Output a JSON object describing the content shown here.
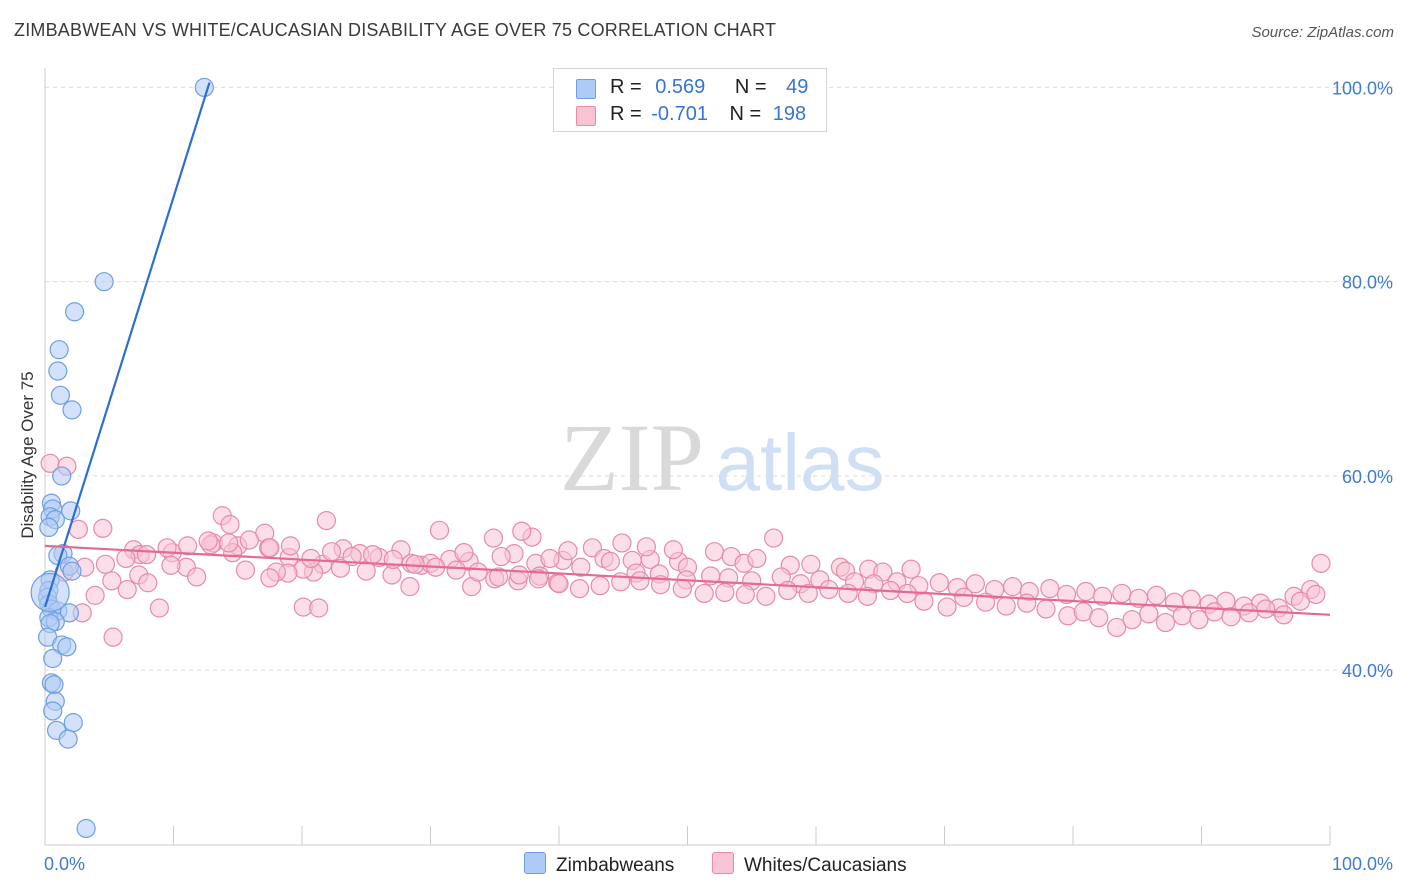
{
  "header": {
    "title": "ZIMBABWEAN VS WHITE/CAUCASIAN DISABILITY AGE OVER 75 CORRELATION CHART",
    "source": "Source: ZipAtlas.com"
  },
  "watermark": {
    "zip": "ZIP",
    "atlas": "atlas"
  },
  "legend_top": {
    "rows": [
      {
        "r_label": "R =",
        "r_value": "0.569",
        "n_label": "N =",
        "n_value": "49",
        "color": "#aecbf5",
        "border": "#6f9fe0"
      },
      {
        "r_label": "R =",
        "r_value": "-0.701",
        "n_label": "N =",
        "n_value": "198",
        "color": "#f8c3d3",
        "border": "#e88aa8"
      }
    ]
  },
  "chart_data": {
    "type": "scatter",
    "title": "ZIMBABWEAN VS WHITE/CAUCASIAN DISABILITY AGE OVER 75 CORRELATION CHART",
    "xlabel": "",
    "ylabel": "Disability Age Over 75",
    "xlim": [
      0,
      100
    ],
    "ylim": [
      22,
      102
    ],
    "x_tick_labels": [
      "0.0%",
      "100.0%"
    ],
    "y_ticks": [
      40,
      60,
      80,
      100
    ],
    "y_tick_labels": [
      "40.0%",
      "60.0%",
      "80.0%",
      "100.0%"
    ],
    "grid": "horizontal dashed",
    "legend_position": "top-center and bottom",
    "series": [
      {
        "name": "Zimbabweans",
        "color": "#6f9fe0",
        "fill": "#aecbf5",
        "trend": {
          "x": [
            0.0,
            12.8
          ],
          "y": [
            46.5,
            100.5
          ]
        },
        "points": [
          [
            12.4,
            100.0
          ],
          [
            4.6,
            80.0
          ],
          [
            2.3,
            76.9
          ],
          [
            1.1,
            73.0
          ],
          [
            1.0,
            70.8
          ],
          [
            1.2,
            68.3
          ],
          [
            2.1,
            66.8
          ],
          [
            1.3,
            60.0
          ],
          [
            0.5,
            57.2
          ],
          [
            0.6,
            56.6
          ],
          [
            2.0,
            56.4
          ],
          [
            0.4,
            55.8
          ],
          [
            0.8,
            55.5
          ],
          [
            0.3,
            54.7
          ],
          [
            1.4,
            52.0
          ],
          [
            1.0,
            51.8
          ],
          [
            1.9,
            50.7
          ],
          [
            2.1,
            50.2
          ],
          [
            0.4,
            49.3
          ],
          [
            0.3,
            48.2
          ],
          [
            0.2,
            47.5
          ],
          [
            0.3,
            46.8
          ],
          [
            0.5,
            46.3
          ],
          [
            1.0,
            46.1
          ],
          [
            1.9,
            45.9
          ],
          [
            0.3,
            45.4
          ],
          [
            0.8,
            45.0
          ],
          [
            0.4,
            44.8
          ],
          [
            0.2,
            43.4
          ],
          [
            1.3,
            42.6
          ],
          [
            1.7,
            42.4
          ],
          [
            0.6,
            41.2
          ],
          [
            0.5,
            38.7
          ],
          [
            0.7,
            38.5
          ],
          [
            0.8,
            36.8
          ],
          [
            0.6,
            35.8
          ],
          [
            2.2,
            34.6
          ],
          [
            0.9,
            33.8
          ],
          [
            1.8,
            32.9
          ],
          [
            3.2,
            23.7
          ]
        ],
        "big_points": [
          [
            0.4,
            48.0
          ]
        ]
      },
      {
        "name": "Whites/Caucasians",
        "color": "#e88aa8",
        "fill": "#f8c3d3",
        "trend": {
          "x": [
            0.0,
            100.0
          ],
          "y": [
            52.8,
            45.7
          ]
        },
        "points": [
          [
            0.4,
            61.3
          ],
          [
            1.7,
            61.0
          ],
          [
            13.8,
            55.9
          ],
          [
            21.9,
            55.4
          ],
          [
            14.4,
            55.0
          ],
          [
            4.5,
            54.6
          ],
          [
            2.6,
            54.5
          ],
          [
            30.7,
            54.4
          ],
          [
            17.1,
            54.1
          ],
          [
            34.9,
            53.6
          ],
          [
            37.9,
            53.7
          ],
          [
            13.1,
            53.1
          ],
          [
            12.9,
            52.9
          ],
          [
            15.0,
            52.8
          ],
          [
            17.4,
            52.6
          ],
          [
            6.9,
            52.4
          ],
          [
            9.9,
            52.1
          ],
          [
            7.4,
            51.9
          ],
          [
            27.7,
            52.4
          ],
          [
            23.2,
            52.5
          ],
          [
            14.6,
            52.1
          ],
          [
            19.0,
            51.6
          ],
          [
            24.5,
            52.0
          ],
          [
            26.0,
            51.6
          ],
          [
            31.5,
            51.4
          ],
          [
            33.0,
            51.2
          ],
          [
            40.3,
            51.3
          ],
          [
            36.5,
            52.0
          ],
          [
            38.2,
            51.0
          ],
          [
            35.5,
            51.7
          ],
          [
            40.7,
            52.3
          ],
          [
            39.3,
            51.5
          ],
          [
            42.6,
            52.6
          ],
          [
            43.5,
            51.5
          ],
          [
            44.0,
            51.2
          ],
          [
            45.7,
            51.3
          ],
          [
            47.1,
            51.4
          ],
          [
            49.3,
            51.2
          ],
          [
            50.0,
            50.6
          ],
          [
            52.1,
            52.2
          ],
          [
            53.4,
            51.7
          ],
          [
            54.4,
            51.0
          ],
          [
            55.4,
            51.5
          ],
          [
            58.0,
            50.8
          ],
          [
            59.6,
            50.9
          ],
          [
            61.9,
            50.6
          ],
          [
            62.3,
            50.2
          ],
          [
            64.1,
            50.4
          ],
          [
            65.2,
            50.1
          ],
          [
            67.4,
            50.4
          ],
          [
            56.7,
            53.6
          ],
          [
            46.8,
            52.7
          ],
          [
            48.9,
            52.4
          ],
          [
            44.9,
            53.1
          ],
          [
            37.1,
            54.3
          ],
          [
            21.6,
            50.9
          ],
          [
            20.9,
            50.1
          ],
          [
            20.1,
            50.4
          ],
          [
            18.9,
            50.0
          ],
          [
            18.0,
            50.1
          ],
          [
            11.0,
            50.6
          ],
          [
            9.8,
            50.8
          ],
          [
            7.3,
            49.8
          ],
          [
            5.2,
            49.2
          ],
          [
            3.9,
            47.7
          ],
          [
            8.0,
            49.0
          ],
          [
            11.8,
            49.6
          ],
          [
            15.6,
            50.3
          ],
          [
            17.5,
            49.5
          ],
          [
            23.0,
            50.5
          ],
          [
            25.0,
            50.2
          ],
          [
            27.0,
            49.8
          ],
          [
            28.4,
            48.6
          ],
          [
            29.3,
            50.8
          ],
          [
            33.2,
            48.6
          ],
          [
            35.0,
            49.4
          ],
          [
            36.8,
            49.2
          ],
          [
            28.5,
            51.0
          ],
          [
            30.0,
            51.0
          ],
          [
            32.6,
            52.1
          ],
          [
            38.5,
            49.7
          ],
          [
            39.9,
            49.0
          ],
          [
            41.7,
            50.6
          ],
          [
            46.0,
            50.0
          ],
          [
            47.8,
            49.9
          ],
          [
            49.9,
            49.3
          ],
          [
            51.8,
            49.7
          ],
          [
            53.2,
            49.5
          ],
          [
            55.0,
            49.2
          ],
          [
            57.3,
            49.6
          ],
          [
            58.8,
            48.9
          ],
          [
            60.3,
            49.3
          ],
          [
            63.0,
            49.1
          ],
          [
            64.5,
            48.9
          ],
          [
            66.3,
            49.1
          ],
          [
            68.0,
            48.7
          ],
          [
            69.6,
            49.0
          ],
          [
            71.0,
            48.5
          ],
          [
            72.4,
            48.9
          ],
          [
            73.9,
            48.3
          ],
          [
            75.3,
            48.6
          ],
          [
            76.6,
            48.1
          ],
          [
            78.2,
            48.4
          ],
          [
            79.5,
            47.8
          ],
          [
            81.0,
            48.1
          ],
          [
            82.3,
            47.6
          ],
          [
            83.8,
            47.9
          ],
          [
            85.1,
            47.4
          ],
          [
            86.5,
            47.7
          ],
          [
            87.9,
            47.0
          ],
          [
            89.2,
            47.3
          ],
          [
            90.6,
            46.8
          ],
          [
            91.9,
            47.1
          ],
          [
            93.3,
            46.6
          ],
          [
            94.6,
            46.9
          ],
          [
            96.0,
            46.4
          ],
          [
            97.2,
            47.6
          ],
          [
            98.5,
            48.3
          ],
          [
            99.3,
            51.0
          ],
          [
            71.5,
            47.5
          ],
          [
            73.2,
            47.0
          ],
          [
            74.8,
            46.6
          ],
          [
            76.4,
            46.9
          ],
          [
            77.9,
            46.3
          ],
          [
            79.6,
            45.6
          ],
          [
            80.8,
            46.0
          ],
          [
            82.0,
            45.4
          ],
          [
            83.4,
            44.4
          ],
          [
            84.6,
            45.2
          ],
          [
            85.9,
            45.8
          ],
          [
            87.2,
            44.9
          ],
          [
            88.5,
            45.6
          ],
          [
            89.8,
            45.2
          ],
          [
            91.0,
            46.0
          ],
          [
            92.3,
            45.5
          ],
          [
            93.7,
            45.9
          ],
          [
            95.0,
            46.3
          ],
          [
            96.4,
            45.7
          ],
          [
            97.7,
            47.1
          ],
          [
            98.9,
            47.8
          ],
          [
            70.2,
            46.5
          ],
          [
            68.4,
            47.1
          ],
          [
            67.1,
            47.9
          ],
          [
            65.8,
            48.2
          ],
          [
            64.0,
            47.6
          ],
          [
            62.5,
            47.9
          ],
          [
            61.0,
            48.3
          ],
          [
            59.4,
            47.9
          ],
          [
            57.8,
            48.2
          ],
          [
            56.1,
            47.6
          ],
          [
            54.5,
            47.8
          ],
          [
            52.9,
            48.0
          ],
          [
            51.3,
            47.9
          ],
          [
            49.6,
            48.4
          ],
          [
            47.9,
            48.8
          ],
          [
            46.3,
            49.2
          ],
          [
            44.8,
            49.1
          ],
          [
            43.2,
            48.7
          ],
          [
            41.6,
            48.4
          ],
          [
            40.0,
            48.9
          ],
          [
            38.4,
            49.4
          ],
          [
            36.9,
            49.8
          ],
          [
            35.3,
            49.6
          ],
          [
            33.7,
            50.1
          ],
          [
            32.0,
            50.3
          ],
          [
            30.4,
            50.6
          ],
          [
            28.8,
            50.9
          ],
          [
            27.1,
            51.4
          ],
          [
            25.5,
            51.9
          ],
          [
            23.9,
            51.7
          ],
          [
            22.3,
            52.2
          ],
          [
            20.7,
            51.5
          ],
          [
            19.1,
            52.8
          ],
          [
            17.5,
            52.6
          ],
          [
            15.9,
            53.4
          ],
          [
            14.3,
            53.1
          ],
          [
            12.7,
            53.3
          ],
          [
            11.1,
            52.8
          ],
          [
            9.5,
            52.6
          ],
          [
            7.9,
            51.9
          ],
          [
            6.3,
            51.5
          ],
          [
            4.7,
            50.9
          ],
          [
            3.1,
            50.6
          ],
          [
            1.5,
            50.1
          ],
          [
            5.3,
            43.4
          ],
          [
            8.9,
            46.4
          ],
          [
            20.1,
            46.5
          ],
          [
            21.3,
            46.4
          ],
          [
            2.9,
            45.9
          ],
          [
            6.4,
            48.3
          ]
        ]
      }
    ]
  },
  "bottom_legend": {
    "items": [
      {
        "label": "Zimbabweans",
        "color": "#aecbf5",
        "border": "#6f9fe0"
      },
      {
        "label": "Whites/Caucasians",
        "color": "#f8c3d3",
        "border": "#e88aa8"
      }
    ]
  }
}
